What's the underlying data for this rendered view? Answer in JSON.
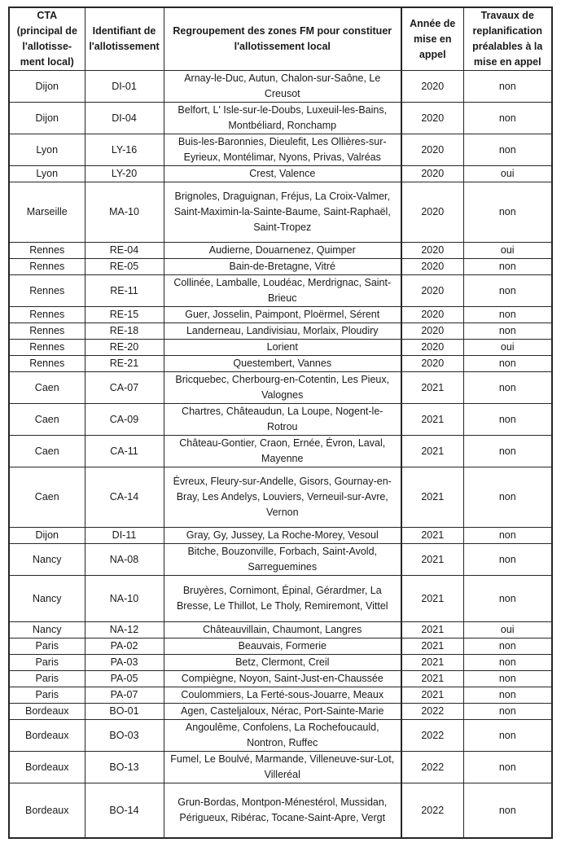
{
  "colors": {
    "background": "#ffffff",
    "text": "#1a1a1a",
    "border": "#262626"
  },
  "table": {
    "headers": [
      "CTA\n(principal de\nl'allotisse-\nment local)",
      "Identifiant de l'allotissement",
      "Regroupement des zones FM pour constituer l'allotissement local",
      "Année de mise en appel",
      "Travaux de replanification préalables à la mise en appel"
    ],
    "rows": [
      {
        "cta": "Dijon",
        "id": "DI-01",
        "zones": "Arnay-le-Duc, Autun, Chalon-sur-Saône, Le Creusot",
        "annee": "2020",
        "travaux": "non"
      },
      {
        "cta": "Dijon",
        "id": "DI-04",
        "zones": "Belfort, L' Isle-sur-le-Doubs, Luxeuil-les-Bains, Montbéliard, Ronchamp",
        "annee": "2020",
        "travaux": "non"
      },
      {
        "cta": "Lyon",
        "id": "LY-16",
        "zones": "Buis-les-Baronnies, Dieulefit, Les Ollières-sur-Eyrieux, Montélimar, Nyons, Privas, Valréas",
        "annee": "2020",
        "travaux": "non"
      },
      {
        "cta": "Lyon",
        "id": "LY-20",
        "zones": "Crest, Valence",
        "annee": "2020",
        "travaux": "oui"
      },
      {
        "cta": "Marseille",
        "id": "MA-10",
        "zones": "Brignoles, Draguignan, Fréjus, La Croix-Valmer, Saint-Maximin-la-Sainte-Baume, Saint-Raphaël, Saint-Tropez",
        "annee": "2020",
        "travaux": "non"
      },
      {
        "cta": "Rennes",
        "id": "RE-04",
        "zones": "Audierne, Douarnenez, Quimper",
        "annee": "2020",
        "travaux": "oui"
      },
      {
        "cta": "Rennes",
        "id": "RE-05",
        "zones": "Bain-de-Bretagne, Vitré",
        "annee": "2020",
        "travaux": "non"
      },
      {
        "cta": "Rennes",
        "id": "RE-11",
        "zones": "Collinée, Lamballe, Loudéac, Merdrignac, Saint-Brieuc",
        "annee": "2020",
        "travaux": "non"
      },
      {
        "cta": "Rennes",
        "id": "RE-15",
        "zones": "Guer, Josselin, Paimpont, Ploërmel, Sérent",
        "annee": "2020",
        "travaux": "non"
      },
      {
        "cta": "Rennes",
        "id": "RE-18",
        "zones": "Landerneau, Landivisiau, Morlaix, Ploudiry",
        "annee": "2020",
        "travaux": "non"
      },
      {
        "cta": "Rennes",
        "id": "RE-20",
        "zones": "Lorient",
        "annee": "2020",
        "travaux": "oui"
      },
      {
        "cta": "Rennes",
        "id": "RE-21",
        "zones": "Questembert, Vannes",
        "annee": "2020",
        "travaux": "non"
      },
      {
        "cta": "Caen",
        "id": "CA-07",
        "zones": "Bricquebec, Cherbourg-en-Cotentin, Les Pieux, Valognes",
        "annee": "2021",
        "travaux": "non"
      },
      {
        "cta": "Caen",
        "id": "CA-09",
        "zones": "Chartres, Châteaudun, La Loupe, Nogent-le-Rotrou",
        "annee": "2021",
        "travaux": "non"
      },
      {
        "cta": "Caen",
        "id": "CA-11",
        "zones": "Château-Gontier, Craon, Ernée, Évron, Laval, Mayenne",
        "annee": "2021",
        "travaux": "non"
      },
      {
        "cta": "Caen",
        "id": "CA-14",
        "zones": "Évreux, Fleury-sur-Andelle, Gisors, Gournay-en-Bray, Les Andelys, Louviers, Verneuil-sur-Avre, Vernon",
        "annee": "2021",
        "travaux": "non"
      },
      {
        "cta": "Dijon",
        "id": "DI-11",
        "zones": "Gray, Gy, Jussey, La Roche-Morey, Vesoul",
        "annee": "2021",
        "travaux": "non"
      },
      {
        "cta": "Nancy",
        "id": "NA-08",
        "zones": "Bitche, Bouzonville, Forbach, Saint-Avold, Sarreguemines",
        "annee": "2021",
        "travaux": "non"
      },
      {
        "cta": "Nancy",
        "id": "NA-10",
        "zones": "Bruyères, Cornimont, Épinal, Gérardmer, La Bresse, Le Thillot, Le Tholy, Remiremont, Vittel",
        "annee": "2021",
        "travaux": "non"
      },
      {
        "cta": "Nancy",
        "id": "NA-12",
        "zones": "Châteauvillain, Chaumont, Langres",
        "annee": "2021",
        "travaux": "oui"
      },
      {
        "cta": "Paris",
        "id": "PA-02",
        "zones": "Beauvais, Formerie",
        "annee": "2021",
        "travaux": "non"
      },
      {
        "cta": "Paris",
        "id": "PA-03",
        "zones": "Betz, Clermont, Creil",
        "annee": "2021",
        "travaux": "non"
      },
      {
        "cta": "Paris",
        "id": "PA-05",
        "zones": "Compiègne, Noyon, Saint-Just-en-Chaussée",
        "annee": "2021",
        "travaux": "non"
      },
      {
        "cta": "Paris",
        "id": "PA-07",
        "zones": "Coulommiers, La Ferté-sous-Jouarre, Meaux",
        "annee": "2021",
        "travaux": "non"
      },
      {
        "cta": "Bordeaux",
        "id": "BO-01",
        "zones": "Agen, Casteljaloux, Nérac, Port-Sainte-Marie",
        "annee": "2022",
        "travaux": "non"
      },
      {
        "cta": "Bordeaux",
        "id": "BO-03",
        "zones": "Angoulême, Confolens, La Rochefoucauld, Nontron, Ruffec",
        "annee": "2022",
        "travaux": "non"
      },
      {
        "cta": "Bordeaux",
        "id": "BO-13",
        "zones": "Fumel, Le Boulvé, Marmande, Villeneuve-sur-Lot, Villeréal",
        "annee": "2022",
        "travaux": "non"
      },
      {
        "cta": "Bordeaux",
        "id": "BO-14",
        "zones": "Grun-Bordas, Montpon-Ménestérol, Mussidan, Périgueux, Ribérac, Tocane-Saint-Apre, Vergt",
        "annee": "2022",
        "travaux": "non"
      }
    ]
  }
}
